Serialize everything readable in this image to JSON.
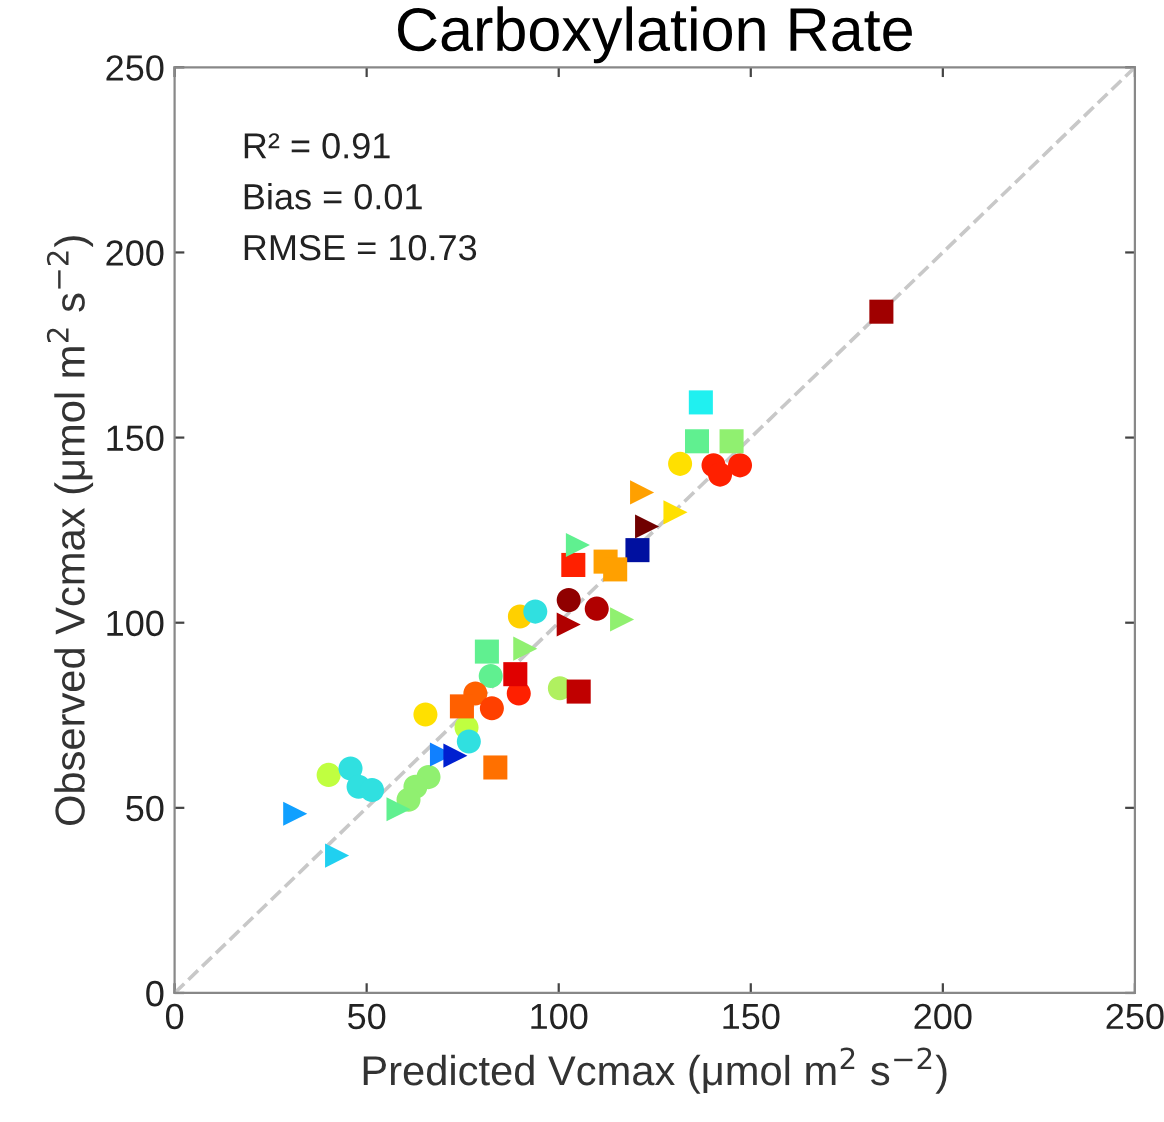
{
  "chart_data": {
    "type": "scatter",
    "title": "Carboxylation Rate",
    "xlabel": "Predicted Vcmax (μmol m$^{2}$ s$^{−2}$)",
    "ylabel": "Observed Vcmax (μmol m$^{2}$ s$^{−2}$)",
    "annotations": [
      "R² = 0.91",
      "Bias = 0.01",
      "RMSE = 10.73"
    ],
    "xlim": [
      0,
      250
    ],
    "ylim": [
      0,
      250
    ],
    "xticks": [
      0,
      50,
      100,
      150,
      200,
      250
    ],
    "yticks": [
      0,
      50,
      100,
      150,
      200,
      250
    ],
    "grid": false,
    "series": [
      {
        "type": "line",
        "x": [
          0,
          250
        ],
        "values": [
          0,
          250
        ],
        "color": "#c8c8c8",
        "line_style": "dashed",
        "marker": "none"
      },
      {
        "marker": "circle",
        "x": [
          131.6,
          140.3,
          142,
          147.2,
          102.6,
          109.9,
          89.9,
          93.9,
          82.3,
          89.6,
          100.3,
          78.3,
          82.6,
          65.3,
          76,
          76.6,
          40.1,
          45.8,
          47.9,
          51.4,
          66.1,
          62.7,
          60.9
        ],
        "values": [
          142.9,
          142.5,
          140,
          142.5,
          106.1,
          103.8,
          101.7,
          103,
          85.6,
          80.9,
          82.3,
          80.9,
          76.9,
          75.2,
          71.7,
          67.9,
          58.9,
          60.6,
          55.7,
          54.8,
          58.3,
          55.7,
          52.2
        ],
        "colors": [
          "#ffe000",
          "#ff2000",
          "#ff2000",
          "#ff2000",
          "#900000",
          "#b00000",
          "#ffd000",
          "#30e0e0",
          "#60f090",
          "#ff2000",
          "#b0f060",
          "#ff6000",
          "#ff4000",
          "#ffe000",
          "#c0ff40",
          "#30e0e0",
          "#c0ff40",
          "#30e0e0",
          "#30e0e0",
          "#30e0e0",
          "#90f070",
          "#90f070",
          "#90f070"
        ]
      },
      {
        "marker": "square",
        "x": [
          184,
          137,
          136,
          145,
          120.5,
          103.8,
          112.2,
          114.7,
          81.3,
          88.7,
          105.2,
          74.8,
          83.5
        ],
        "values": [
          184,
          159.5,
          149,
          149,
          119.6,
          115.6,
          116.5,
          114.4,
          92.2,
          86.1,
          81.4,
          77.4,
          60.9
        ],
        "colors": [
          "#a00000",
          "#20f0f0",
          "#60f090",
          "#90f070",
          "#0010a0",
          "#ff2000",
          "#ffa000",
          "#ffa000",
          "#60f090",
          "#e00000",
          "#c00000",
          "#ff6000",
          "#ff7000"
        ]
      },
      {
        "marker": "triangle",
        "x": [
          121.7,
          130.4,
          123,
          105,
          102.6,
          116.5,
          91.3,
          69.6,
          73.1,
          58.3,
          31.4,
          42.3
        ],
        "values": [
          135.2,
          129.8,
          126,
          121,
          99.5,
          100.9,
          93,
          64.4,
          64.1,
          49.6,
          48.4,
          37.1
        ],
        "colors": [
          "#ffa000",
          "#ffe000",
          "#700000",
          "#60f090",
          "#b00000",
          "#90f070",
          "#90f070",
          "#1080ff",
          "#0020d0",
          "#60f090",
          "#10a0ff",
          "#20d0f0"
        ]
      }
    ]
  }
}
